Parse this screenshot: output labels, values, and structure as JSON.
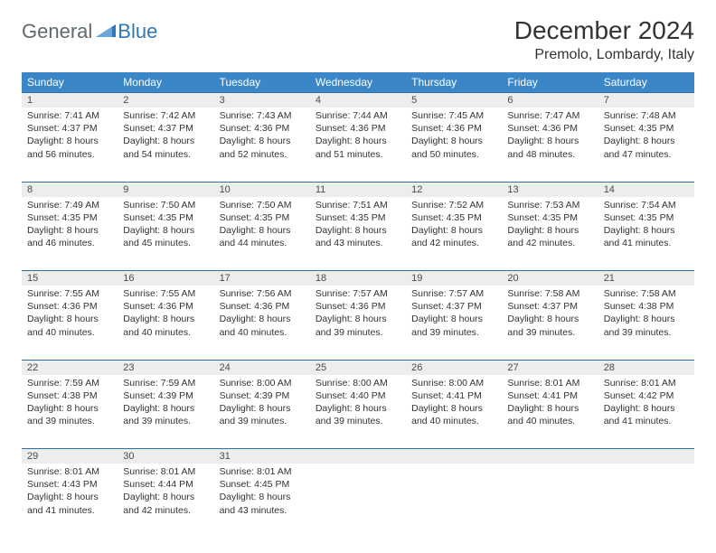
{
  "brand": {
    "part1": "General",
    "part2": "Blue"
  },
  "title": "December 2024",
  "location": "Premolo, Lombardy, Italy",
  "colors": {
    "header_bg": "#3b86c6",
    "rule": "#2f6fa8",
    "daynum_bg": "#eceeee",
    "brand_gray": "#5e6a6e",
    "brand_blue": "#2f77b6"
  },
  "weekdays": [
    "Sunday",
    "Monday",
    "Tuesday",
    "Wednesday",
    "Thursday",
    "Friday",
    "Saturday"
  ],
  "weeks": [
    [
      {
        "n": "1",
        "sr": "Sunrise: 7:41 AM",
        "ss": "Sunset: 4:37 PM",
        "d1": "Daylight: 8 hours",
        "d2": "and 56 minutes."
      },
      {
        "n": "2",
        "sr": "Sunrise: 7:42 AM",
        "ss": "Sunset: 4:37 PM",
        "d1": "Daylight: 8 hours",
        "d2": "and 54 minutes."
      },
      {
        "n": "3",
        "sr": "Sunrise: 7:43 AM",
        "ss": "Sunset: 4:36 PM",
        "d1": "Daylight: 8 hours",
        "d2": "and 52 minutes."
      },
      {
        "n": "4",
        "sr": "Sunrise: 7:44 AM",
        "ss": "Sunset: 4:36 PM",
        "d1": "Daylight: 8 hours",
        "d2": "and 51 minutes."
      },
      {
        "n": "5",
        "sr": "Sunrise: 7:45 AM",
        "ss": "Sunset: 4:36 PM",
        "d1": "Daylight: 8 hours",
        "d2": "and 50 minutes."
      },
      {
        "n": "6",
        "sr": "Sunrise: 7:47 AM",
        "ss": "Sunset: 4:36 PM",
        "d1": "Daylight: 8 hours",
        "d2": "and 48 minutes."
      },
      {
        "n": "7",
        "sr": "Sunrise: 7:48 AM",
        "ss": "Sunset: 4:35 PM",
        "d1": "Daylight: 8 hours",
        "d2": "and 47 minutes."
      }
    ],
    [
      {
        "n": "8",
        "sr": "Sunrise: 7:49 AM",
        "ss": "Sunset: 4:35 PM",
        "d1": "Daylight: 8 hours",
        "d2": "and 46 minutes."
      },
      {
        "n": "9",
        "sr": "Sunrise: 7:50 AM",
        "ss": "Sunset: 4:35 PM",
        "d1": "Daylight: 8 hours",
        "d2": "and 45 minutes."
      },
      {
        "n": "10",
        "sr": "Sunrise: 7:50 AM",
        "ss": "Sunset: 4:35 PM",
        "d1": "Daylight: 8 hours",
        "d2": "and 44 minutes."
      },
      {
        "n": "11",
        "sr": "Sunrise: 7:51 AM",
        "ss": "Sunset: 4:35 PM",
        "d1": "Daylight: 8 hours",
        "d2": "and 43 minutes."
      },
      {
        "n": "12",
        "sr": "Sunrise: 7:52 AM",
        "ss": "Sunset: 4:35 PM",
        "d1": "Daylight: 8 hours",
        "d2": "and 42 minutes."
      },
      {
        "n": "13",
        "sr": "Sunrise: 7:53 AM",
        "ss": "Sunset: 4:35 PM",
        "d1": "Daylight: 8 hours",
        "d2": "and 42 minutes."
      },
      {
        "n": "14",
        "sr": "Sunrise: 7:54 AM",
        "ss": "Sunset: 4:35 PM",
        "d1": "Daylight: 8 hours",
        "d2": "and 41 minutes."
      }
    ],
    [
      {
        "n": "15",
        "sr": "Sunrise: 7:55 AM",
        "ss": "Sunset: 4:36 PM",
        "d1": "Daylight: 8 hours",
        "d2": "and 40 minutes."
      },
      {
        "n": "16",
        "sr": "Sunrise: 7:55 AM",
        "ss": "Sunset: 4:36 PM",
        "d1": "Daylight: 8 hours",
        "d2": "and 40 minutes."
      },
      {
        "n": "17",
        "sr": "Sunrise: 7:56 AM",
        "ss": "Sunset: 4:36 PM",
        "d1": "Daylight: 8 hours",
        "d2": "and 40 minutes."
      },
      {
        "n": "18",
        "sr": "Sunrise: 7:57 AM",
        "ss": "Sunset: 4:36 PM",
        "d1": "Daylight: 8 hours",
        "d2": "and 39 minutes."
      },
      {
        "n": "19",
        "sr": "Sunrise: 7:57 AM",
        "ss": "Sunset: 4:37 PM",
        "d1": "Daylight: 8 hours",
        "d2": "and 39 minutes."
      },
      {
        "n": "20",
        "sr": "Sunrise: 7:58 AM",
        "ss": "Sunset: 4:37 PM",
        "d1": "Daylight: 8 hours",
        "d2": "and 39 minutes."
      },
      {
        "n": "21",
        "sr": "Sunrise: 7:58 AM",
        "ss": "Sunset: 4:38 PM",
        "d1": "Daylight: 8 hours",
        "d2": "and 39 minutes."
      }
    ],
    [
      {
        "n": "22",
        "sr": "Sunrise: 7:59 AM",
        "ss": "Sunset: 4:38 PM",
        "d1": "Daylight: 8 hours",
        "d2": "and 39 minutes."
      },
      {
        "n": "23",
        "sr": "Sunrise: 7:59 AM",
        "ss": "Sunset: 4:39 PM",
        "d1": "Daylight: 8 hours",
        "d2": "and 39 minutes."
      },
      {
        "n": "24",
        "sr": "Sunrise: 8:00 AM",
        "ss": "Sunset: 4:39 PM",
        "d1": "Daylight: 8 hours",
        "d2": "and 39 minutes."
      },
      {
        "n": "25",
        "sr": "Sunrise: 8:00 AM",
        "ss": "Sunset: 4:40 PM",
        "d1": "Daylight: 8 hours",
        "d2": "and 39 minutes."
      },
      {
        "n": "26",
        "sr": "Sunrise: 8:00 AM",
        "ss": "Sunset: 4:41 PM",
        "d1": "Daylight: 8 hours",
        "d2": "and 40 minutes."
      },
      {
        "n": "27",
        "sr": "Sunrise: 8:01 AM",
        "ss": "Sunset: 4:41 PM",
        "d1": "Daylight: 8 hours",
        "d2": "and 40 minutes."
      },
      {
        "n": "28",
        "sr": "Sunrise: 8:01 AM",
        "ss": "Sunset: 4:42 PM",
        "d1": "Daylight: 8 hours",
        "d2": "and 41 minutes."
      }
    ],
    [
      {
        "n": "29",
        "sr": "Sunrise: 8:01 AM",
        "ss": "Sunset: 4:43 PM",
        "d1": "Daylight: 8 hours",
        "d2": "and 41 minutes."
      },
      {
        "n": "30",
        "sr": "Sunrise: 8:01 AM",
        "ss": "Sunset: 4:44 PM",
        "d1": "Daylight: 8 hours",
        "d2": "and 42 minutes."
      },
      {
        "n": "31",
        "sr": "Sunrise: 8:01 AM",
        "ss": "Sunset: 4:45 PM",
        "d1": "Daylight: 8 hours",
        "d2": "and 43 minutes."
      },
      null,
      null,
      null,
      null
    ]
  ]
}
